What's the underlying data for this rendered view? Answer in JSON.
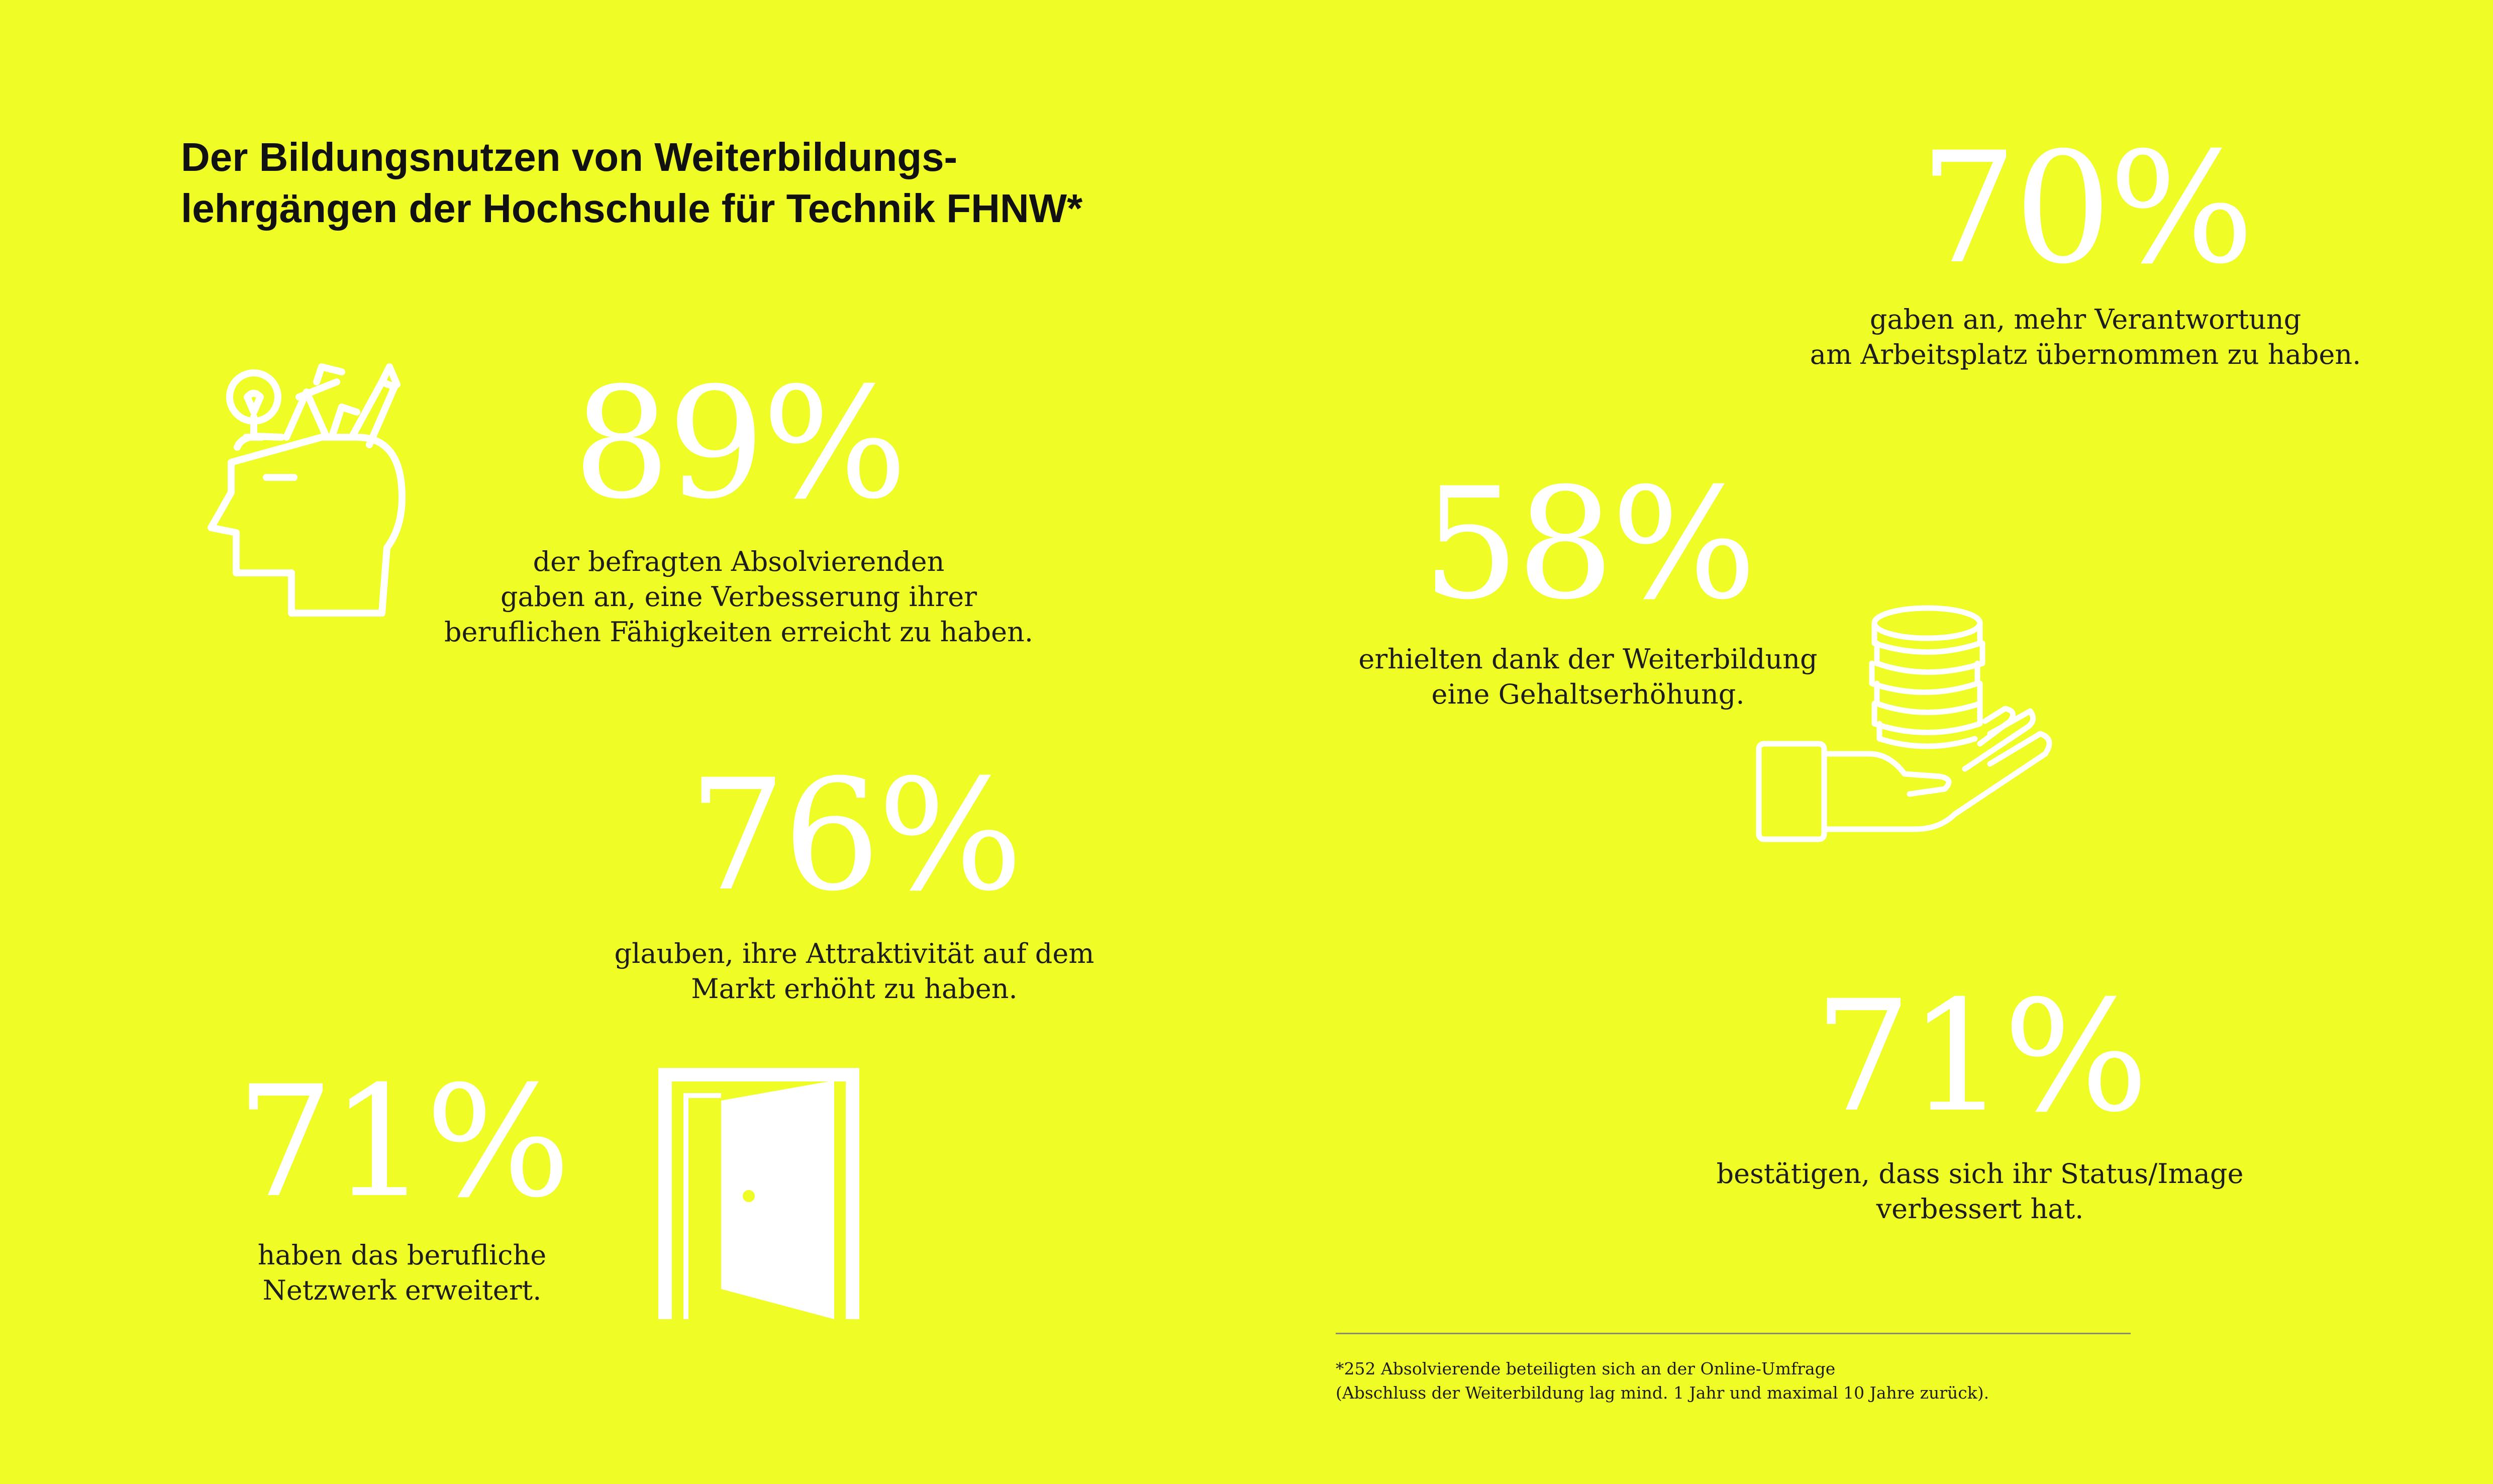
{
  "title": {
    "line1": "Der Bildungsnutzen von Weiterbildungs-",
    "line2": "lehrgängen der Hochschule für Technik FHNW*"
  },
  "stats": {
    "s70": {
      "value": "70%",
      "text": "gaben an, mehr Verantwortung\nam Arbeitsplatz übernommen zu haben."
    },
    "s89": {
      "value": "89%",
      "text": "der befragten Absolvierenden\ngaben an, eine Verbesserung ihrer\nberuflichen Fähigkeiten erreicht zu haben."
    },
    "s58": {
      "value": "58%",
      "text": "erhielten dank der Weiterbildung\neine Gehaltserhöhung."
    },
    "s76": {
      "value": "76%",
      "text": "glauben, ihre Attraktivität auf dem\nMarkt erhöht zu haben."
    },
    "s71a": {
      "value": "71%",
      "text": "haben das berufliche\nNetzwerk erweitert."
    },
    "s71b": {
      "value": "71%",
      "text": "bestätigen, dass sich ihr Status/Image\nverbessert hat."
    }
  },
  "footnote": "*252 Absolvierende beteiligten sich an der Online-Umfrage\n(Abschluss der Weiterbildung lag mind. 1 Jahr und maximal 10 Jahre zurück).",
  "icons": [
    "head-with-ideas-icon",
    "coins-in-hand-icon",
    "open-door-icon"
  ],
  "colors": {
    "background": "#f0fc26",
    "highlight": "#ffffff",
    "text": "#1d1d1b"
  }
}
